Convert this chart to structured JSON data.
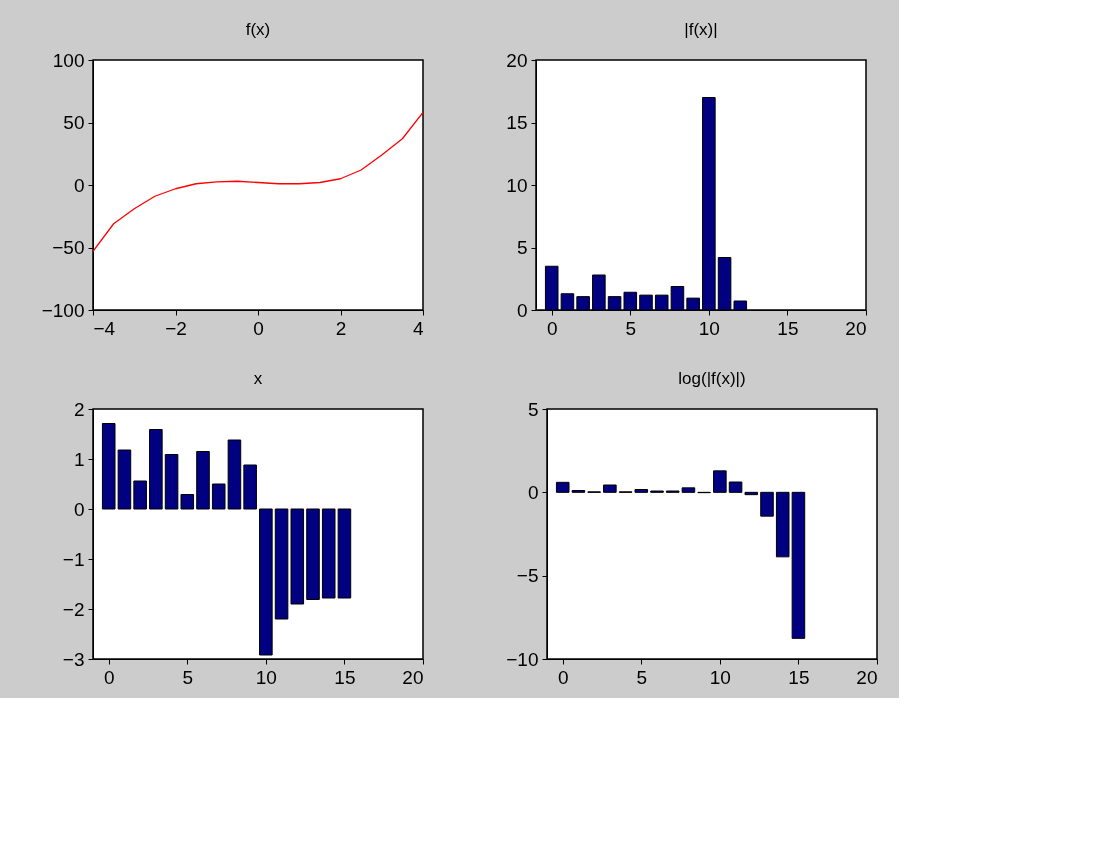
{
  "chart_data": [
    {
      "type": "line",
      "title": "f(x)",
      "x": [
        -4,
        -3.5,
        -3,
        -2.5,
        -2,
        -1.5,
        -1,
        -0.5,
        0,
        0.5,
        1,
        1.5,
        2,
        2.5,
        3,
        3.5,
        4
      ],
      "values": [
        -53,
        -31,
        -19,
        -9,
        -3,
        1,
        2.5,
        3,
        2,
        1,
        1,
        2,
        5,
        12,
        24,
        37,
        58
      ],
      "color": "#ff0000",
      "xlim": [
        -4,
        4
      ],
      "xticks": [
        -4,
        -2,
        0,
        2,
        4
      ],
      "ylim": [
        -100,
        100
      ],
      "yticks": [
        -100,
        -50,
        0,
        50,
        100
      ],
      "grid": false
    },
    {
      "type": "bar",
      "title": "|f(x)|",
      "x": [
        0,
        1,
        2,
        3,
        4,
        5,
        6,
        7,
        8,
        9,
        10,
        11,
        12
      ],
      "values": [
        3.5,
        1.3,
        1.07,
        2.8,
        1.07,
        1.42,
        1.19,
        1.19,
        1.88,
        0.95,
        17.0,
        4.2,
        0.72
      ],
      "color": "#000080",
      "xlim": [
        -1,
        20
      ],
      "xticks": [
        0,
        5,
        10,
        15,
        20
      ],
      "ylim": [
        0,
        20
      ],
      "yticks": [
        0,
        5,
        10,
        15,
        20
      ],
      "grid": false
    },
    {
      "type": "bar",
      "title": "x",
      "x": [
        0,
        1,
        2,
        3,
        4,
        5,
        6,
        7,
        8,
        9,
        10,
        11,
        12,
        13,
        14,
        15
      ],
      "values": [
        1.71,
        1.18,
        0.56,
        1.59,
        1.09,
        0.29,
        1.15,
        0.5,
        1.38,
        0.88,
        -2.92,
        -2.2,
        -1.9,
        -1.81,
        -1.78,
        -1.78
      ],
      "color": "#000080",
      "xlim": [
        -1,
        20
      ],
      "xticks": [
        0,
        5,
        10,
        15,
        20
      ],
      "ylim": [
        -3,
        2
      ],
      "yticks": [
        -3,
        -2,
        -1,
        0,
        1,
        2
      ],
      "grid": false
    },
    {
      "type": "bar",
      "title": "log(|f(x)|)",
      "x": [
        0,
        1,
        2,
        3,
        4,
        5,
        6,
        7,
        8,
        9,
        10,
        11,
        12,
        13,
        14,
        15
      ],
      "values": [
        0.6,
        0.11,
        0.03,
        0.44,
        0.03,
        0.17,
        0.08,
        0.08,
        0.27,
        -0.02,
        1.29,
        0.62,
        -0.14,
        -1.43,
        -3.87,
        -8.76
      ],
      "color": "#000080",
      "xlim": [
        -1,
        20
      ],
      "xticks": [
        0,
        5,
        10,
        15,
        20
      ],
      "ylim": [
        -10,
        5
      ],
      "yticks": [
        -10,
        -5,
        0,
        5
      ],
      "grid": false
    }
  ]
}
